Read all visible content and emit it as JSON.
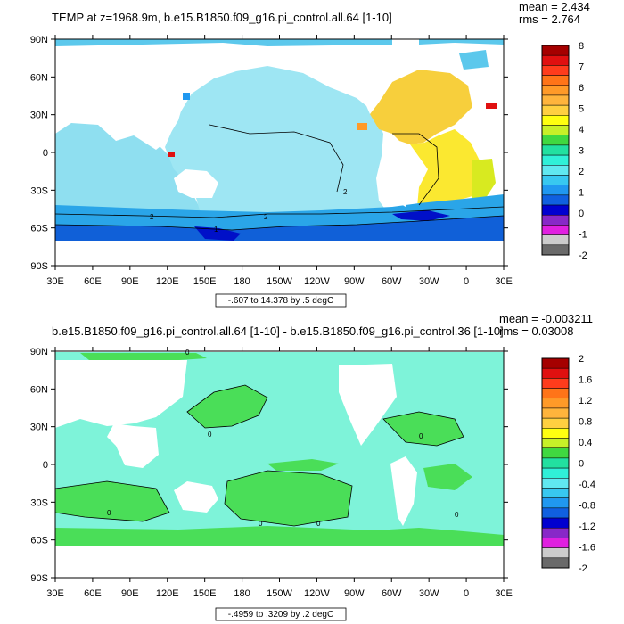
{
  "chart_data": [
    {
      "type": "heatmap",
      "title": "TEMP at z=1968.9m, b.e15.B1850.f09_g16.pi_control.all.64 [1-10]",
      "stats": {
        "mean": "mean = 2.434",
        "rms": "rms = 2.764"
      },
      "x_ticks": [
        "30E",
        "60E",
        "90E",
        "120E",
        "150E",
        "180",
        "150W",
        "120W",
        "90W",
        "60W",
        "30W",
        "0",
        "30E"
      ],
      "y_ticks": [
        "90N",
        "60N",
        "30N",
        "0",
        "30S",
        "60S",
        "90S"
      ],
      "xlim": [
        30,
        390
      ],
      "ylim": [
        -90,
        90
      ],
      "contour_info": "-.607 to 14.378 by .5 degC",
      "colorbar": {
        "labels": [
          "8",
          "7",
          "6",
          "5",
          "4",
          "3",
          "2",
          "1",
          "0",
          "-1",
          "-2"
        ],
        "colors": [
          "#a50000",
          "#e01010",
          "#ff3c1c",
          "#ff7418",
          "#ff9a28",
          "#ffb43c",
          "#ffd040",
          "#ffff10",
          "#c8f028",
          "#40d840",
          "#22e0a0",
          "#30f0d8",
          "#60e8f0",
          "#38c8f0",
          "#2098f0",
          "#1060e0",
          "#0000d0",
          "#8828c8",
          "#e020e0",
          "#cccccc",
          "#6a6a6a"
        ],
        "range": [
          -2,
          8
        ],
        "step": 1
      },
      "contour_labels": [
        "2",
        "2",
        "2",
        "1"
      ],
      "regions": {
        "pacific": "#9ee6f3",
        "indian": "#8fdff0",
        "atlantic": "#f7cf3c",
        "tropical_atlantic": "#fbe830",
        "south_atlantic": "#d8ea20",
        "arctic": "#5cc8ec",
        "southern": "#2aa5e8",
        "deep_south": "#1060d8",
        "ross": "#0010c8",
        "med": "#ff9a28"
      }
    },
    {
      "type": "heatmap",
      "title": "b.e15.B1850.f09_g16.pi_control.all.64 [1-10] - b.e15.B1850.f09_g16.pi_control.36 [1-10]",
      "stats": {
        "mean": "mean = -0.003211",
        "rms": "rms = 0.03008"
      },
      "x_ticks": [
        "30E",
        "60E",
        "90E",
        "120E",
        "150E",
        "180",
        "150W",
        "120W",
        "90W",
        "60W",
        "30W",
        "0",
        "30E"
      ],
      "y_ticks": [
        "90N",
        "60N",
        "30N",
        "0",
        "30S",
        "60S",
        "90S"
      ],
      "xlim": [
        30,
        390
      ],
      "ylim": [
        -90,
        90
      ],
      "contour_info": "-.4959 to .3209 by .2 degC",
      "colorbar": {
        "labels": [
          "2",
          "1.6",
          "1.2",
          "0.8",
          "0.4",
          "0",
          "-0.4",
          "-0.8",
          "-1.2",
          "-1.6",
          "-2"
        ],
        "colors": [
          "#a50000",
          "#e01010",
          "#ff3c1c",
          "#ff7418",
          "#ff9a28",
          "#ffb43c",
          "#ffd040",
          "#ffff10",
          "#c8f028",
          "#40d840",
          "#22e0a0",
          "#30f0d8",
          "#60e8f0",
          "#38c8f0",
          "#2098f0",
          "#1060e0",
          "#0000d0",
          "#8828c8",
          "#e020e0",
          "#cccccc",
          "#6a6a6a"
        ],
        "range": [
          -2,
          2
        ],
        "step": 0.4
      },
      "contour_labels": [
        "0",
        "0",
        "0",
        "0",
        "0",
        "0",
        "0"
      ],
      "regions": {
        "pale": "#7ef3d9",
        "green": "#4ade58"
      }
    }
  ]
}
